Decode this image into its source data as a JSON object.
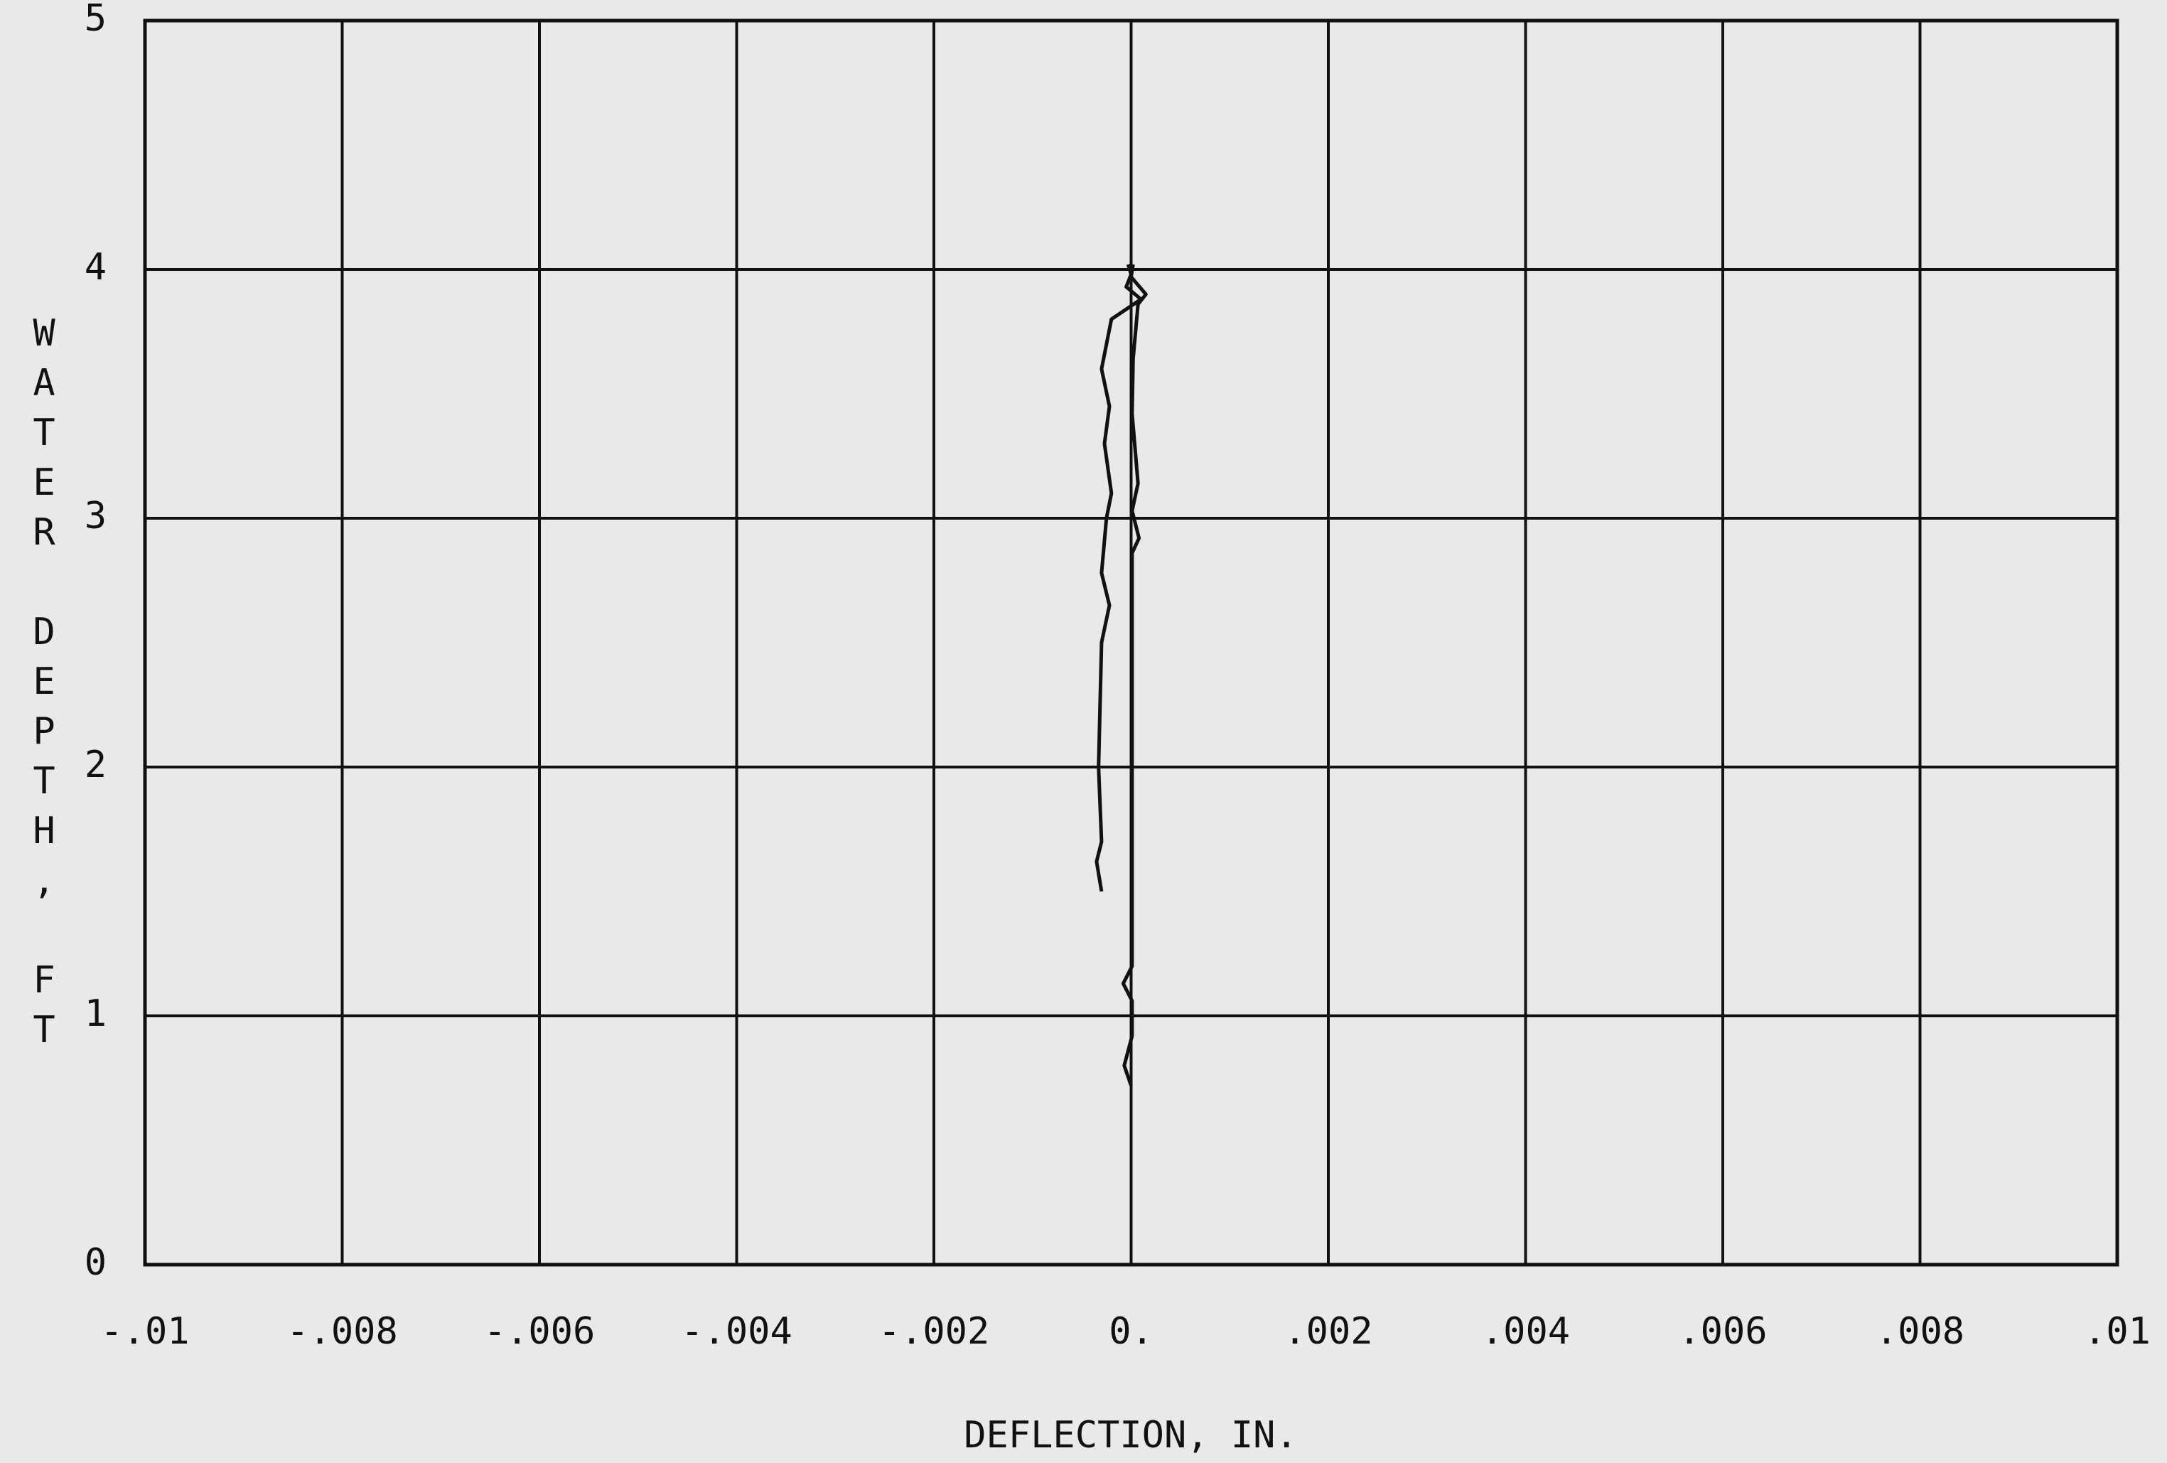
{
  "chart_data": {
    "type": "line",
    "xlabel": "DEFLECTION, IN.",
    "ylabel": "WATER DEPTH, FT",
    "xlim": [
      -0.01,
      0.01
    ],
    "ylim": [
      0,
      5
    ],
    "xticks": [
      {
        "value": -0.01,
        "label": "-.01"
      },
      {
        "value": -0.008,
        "label": "-.008"
      },
      {
        "value": -0.006,
        "label": "-.006"
      },
      {
        "value": -0.004,
        "label": "-.004"
      },
      {
        "value": -0.002,
        "label": "-.002"
      },
      {
        "value": 0,
        "label": "0."
      },
      {
        "value": 0.002,
        "label": ".002"
      },
      {
        "value": 0.004,
        "label": ".004"
      },
      {
        "value": 0.006,
        "label": ".006"
      },
      {
        "value": 0.008,
        "label": ".008"
      },
      {
        "value": 0.01,
        "label": ".01"
      }
    ],
    "yticks": [
      0,
      1,
      2,
      3,
      4,
      5
    ],
    "grid": true,
    "series": [
      {
        "color": "#111111",
        "x": [
          -0.0003,
          -0.00035,
          -0.0003,
          -0.00033,
          -0.0003,
          -0.00022,
          -0.0003,
          -0.00025,
          -0.0002,
          -0.00027,
          -0.00022,
          -0.0003,
          -0.0002,
          0.0001,
          -5e-05,
          0.0,
          -3e-05
        ],
        "values": [
          1.5,
          1.62,
          1.7,
          2.0,
          2.5,
          2.65,
          2.78,
          3.0,
          3.1,
          3.3,
          3.45,
          3.6,
          3.8,
          3.88,
          3.93,
          3.98,
          4.02
        ]
      },
      {
        "color": "#111111",
        "x": [
          0,
          -7e-05,
          1e-05,
          1e-05,
          -8e-05,
          1e-05,
          1e-05,
          8e-05,
          1e-05,
          7e-05,
          1e-05,
          2e-05,
          7e-05,
          0.00015,
          0,
          2e-05
        ],
        "values": [
          0.72,
          0.8,
          0.92,
          1.06,
          1.13,
          1.2,
          2.86,
          2.92,
          3.03,
          3.14,
          3.42,
          3.64,
          3.86,
          3.9,
          3.97,
          4.02
        ]
      }
    ]
  }
}
